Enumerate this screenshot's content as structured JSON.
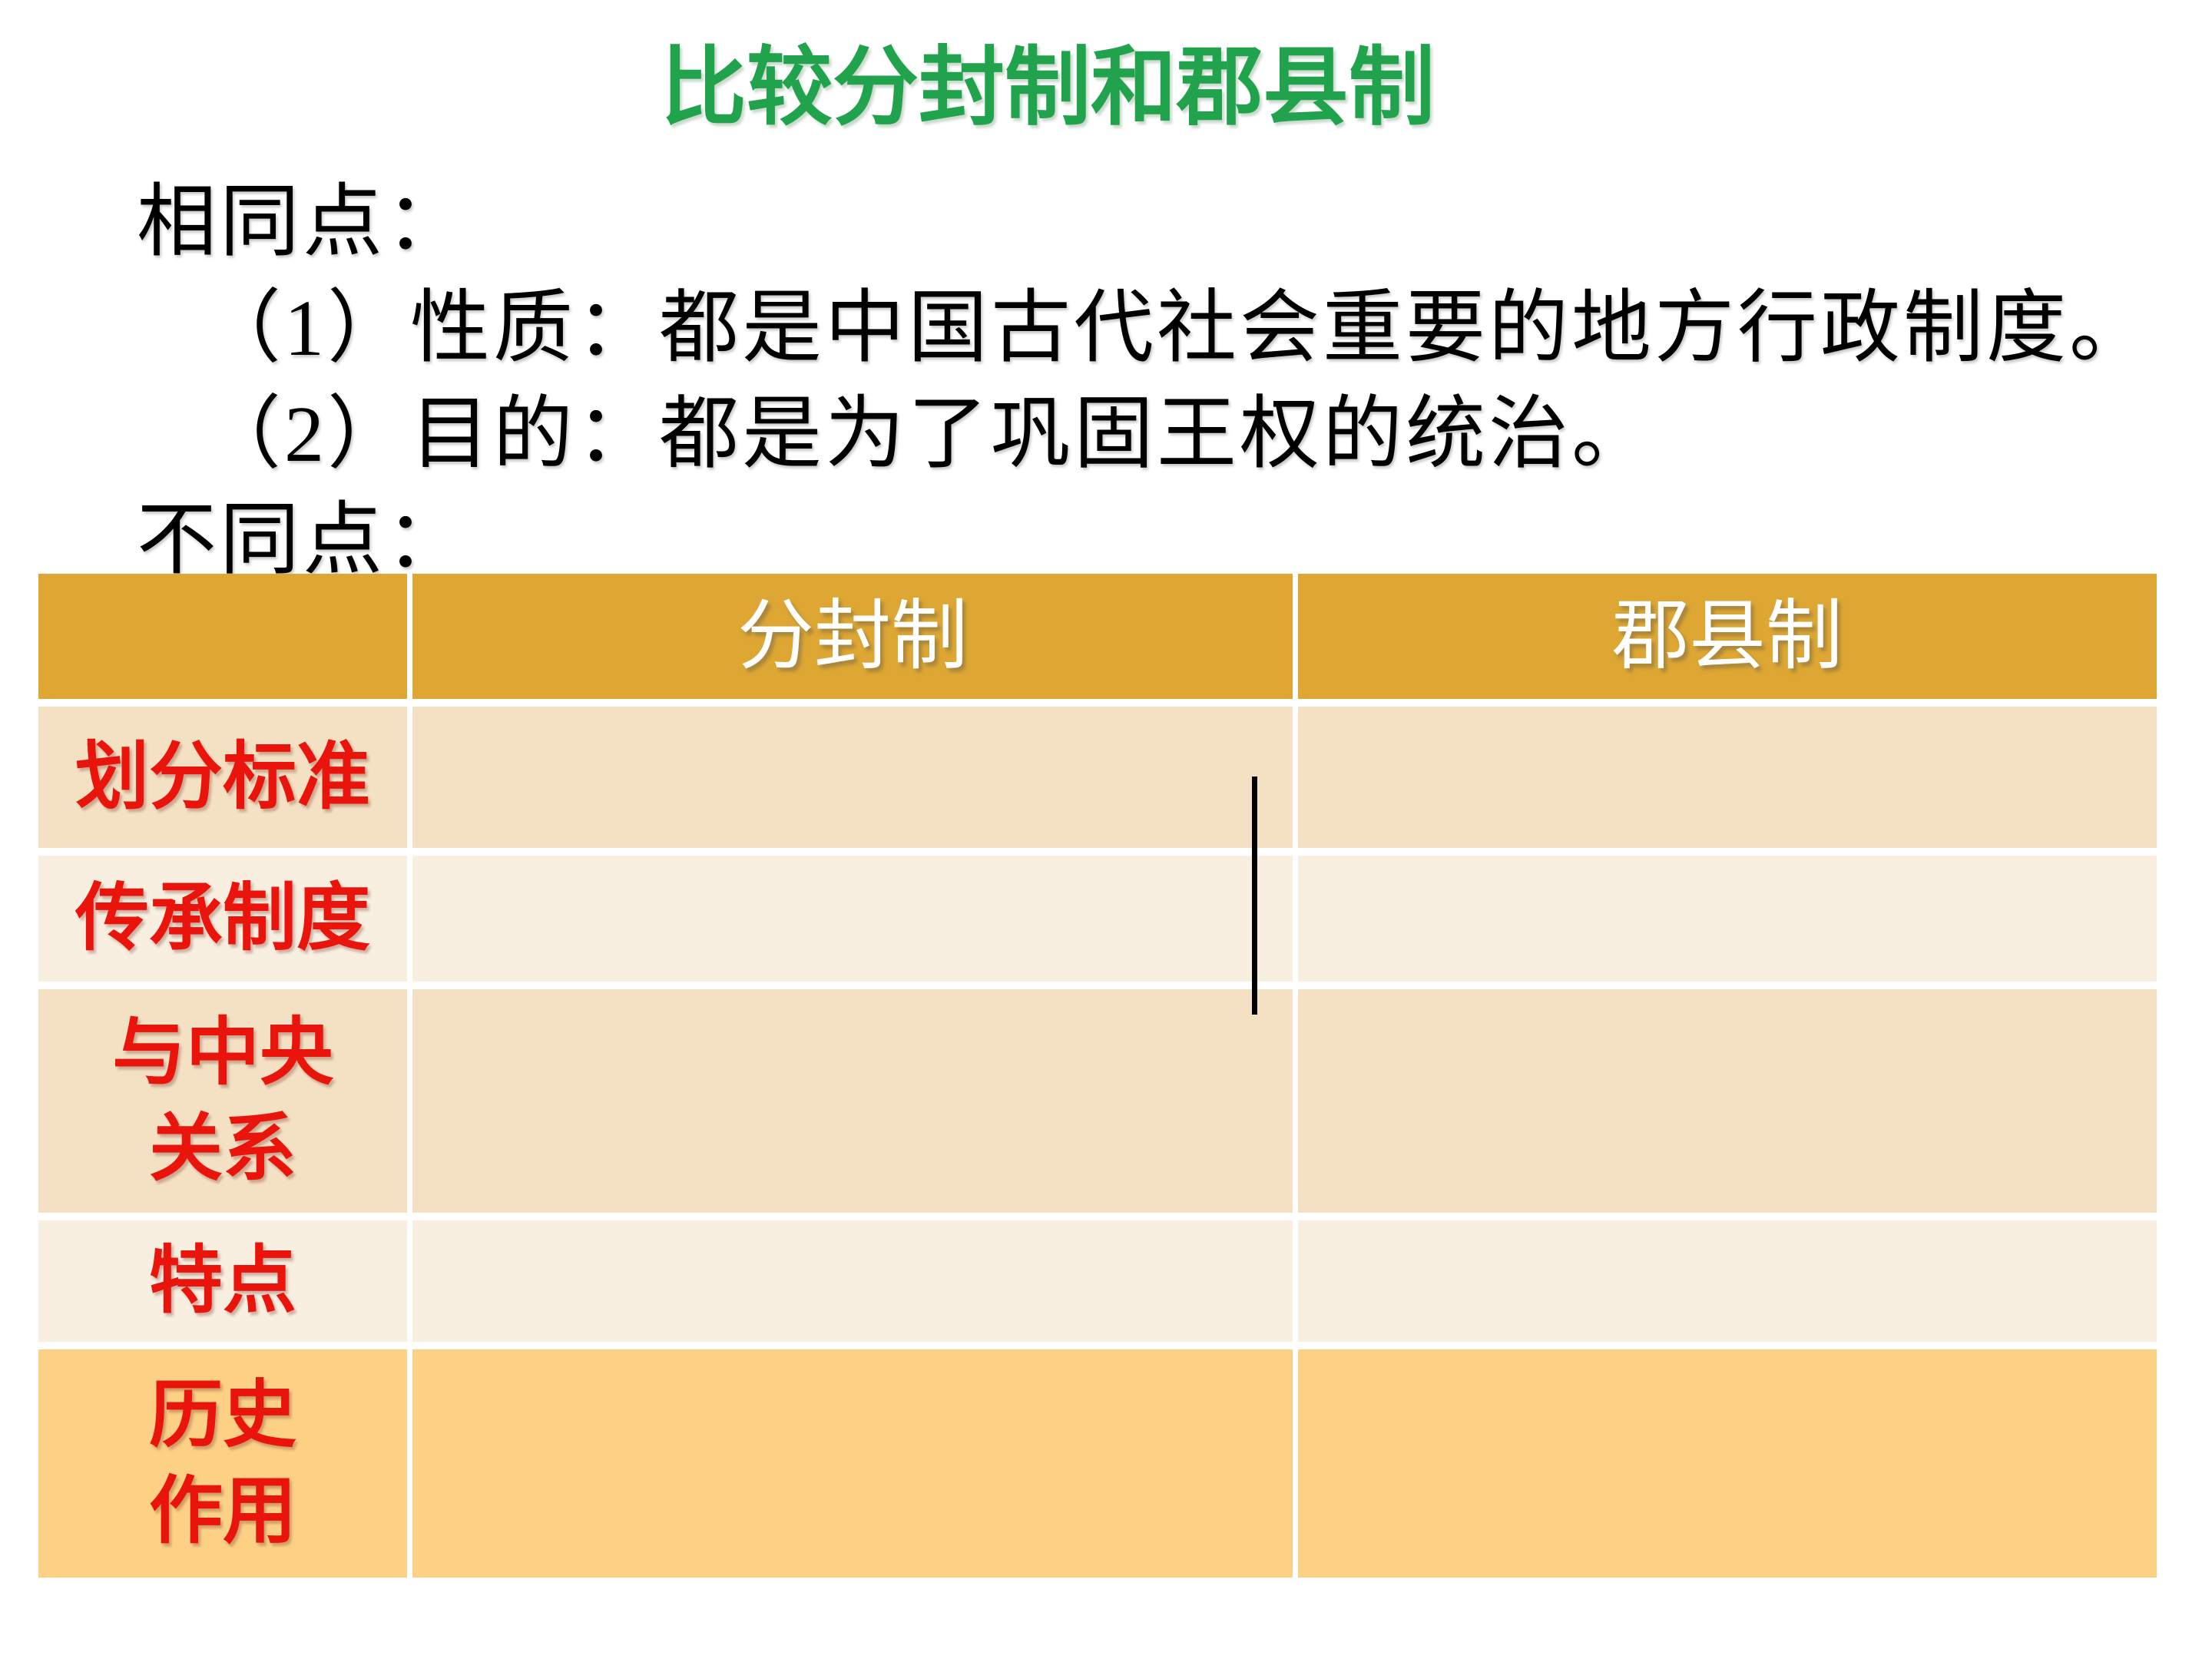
{
  "title": "比较分封制和郡县制",
  "body": {
    "similarities_heading": "相同点：",
    "similarity_1": "（1）性质：都是中国古代社会重要的地方行政制度。",
    "similarity_2": "（2）目的：都是为了巩固王权的统治。",
    "differences_heading": "不同点："
  },
  "table": {
    "header": [
      "",
      "分封制",
      "郡县制"
    ],
    "rows": [
      {
        "label": "划分标准",
        "cells": [
          "",
          ""
        ]
      },
      {
        "label": "传承制度",
        "cells": [
          "",
          ""
        ]
      },
      {
        "label": "与中央\n关系",
        "cells": [
          "",
          ""
        ]
      },
      {
        "label": "特点",
        "cells": [
          "",
          ""
        ]
      },
      {
        "label": "历史\n作用",
        "cells": [
          "",
          ""
        ]
      }
    ]
  },
  "colors": {
    "title_green": "#21A24C",
    "body_black": "#000000",
    "label_red": "#E9150D",
    "header_gold": "#DEA733",
    "header_text_white": "#FFFFFF",
    "row_tan": "#F4E1C4",
    "row_cream": "#F8EFE1",
    "bottom_gold": "#FCD186",
    "divider_black": "#000000"
  }
}
